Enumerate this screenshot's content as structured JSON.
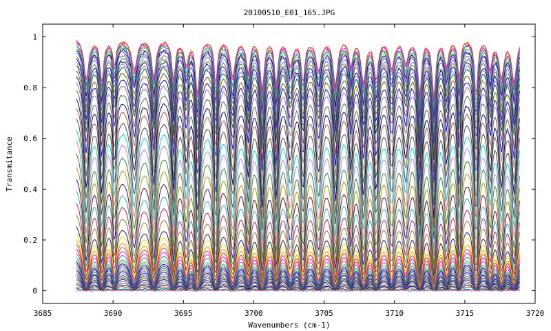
{
  "chart_data": {
    "type": "line",
    "title": "20100510_E01_165.JPG",
    "xlabel": "Wavenumbers (cm-1)",
    "ylabel": "Transmitance",
    "xlim": [
      3685,
      3720
    ],
    "ylim": [
      -0.05,
      1.05
    ],
    "x_ticks": [
      3685,
      3690,
      3695,
      3700,
      3705,
      3710,
      3715,
      3720
    ],
    "x_tick_labels": [
      "3685",
      "3690",
      "3695",
      "3700",
      "3705",
      "3710",
      "3715",
      "3720"
    ],
    "y_ticks": [
      0,
      0.2,
      0.4,
      0.6,
      0.8,
      1
    ],
    "y_tick_labels": [
      "0",
      "0.2",
      "0.4",
      "0.6",
      "0.8",
      "1"
    ],
    "grid": false,
    "legend": "none",
    "x_range": [
      3687.4,
      3718.9
    ],
    "absorption_lines_cm1": [
      3688.1,
      3689.2,
      3690.1,
      3691.5,
      3692.9,
      3694.3,
      3695.2,
      3696.0,
      3697.3,
      3698.5,
      3699.6,
      3700.6,
      3701.6,
      3702.6,
      3703.5,
      3704.6,
      3705.8,
      3706.9,
      3707.8,
      3708.7,
      3709.8,
      3710.8,
      3711.8,
      3712.8,
      3713.7,
      3714.6,
      3715.8,
      3716.8,
      3717.6,
      3718.5
    ],
    "series_baselines": [
      1.0,
      1.0,
      0.995,
      0.99,
      0.985,
      0.98,
      0.975,
      0.97,
      0.96,
      0.95,
      0.94,
      0.93,
      0.92,
      0.9,
      0.88,
      0.86,
      0.83,
      0.8,
      0.77,
      0.73,
      0.69,
      0.65,
      0.6,
      0.55,
      0.5,
      0.45,
      0.4,
      0.35,
      0.3,
      0.27,
      0.24,
      0.22,
      0.2,
      0.18,
      0.16,
      0.15,
      0.14,
      0.13,
      0.12,
      0.11,
      0.1,
      0.09,
      0.08,
      0.07,
      0.06,
      0.05,
      0.04,
      0.03,
      0.02,
      0.01,
      0.005,
      0.0
    ],
    "series_colors": [
      "#ff8c00",
      "#c83c3c",
      "#ff00ff",
      "#2e8b57",
      "#3cb371",
      "#7fbf7f",
      "#00008b",
      "#8a2be2",
      "#4682b4",
      "#808000",
      "#0000cd",
      "#9370db",
      "#006400",
      "#8b4513",
      "#0000ff",
      "#8b7b8b",
      "#556b2f",
      "#000080",
      "#a0522d",
      "#2f4f4f",
      "#00ced1",
      "#ff69b4",
      "#228b22",
      "#b8860b",
      "#4b0082",
      "#20b2aa",
      "#dc143c",
      "#6b8e23",
      "#191970",
      "#ffd700"
    ]
  }
}
